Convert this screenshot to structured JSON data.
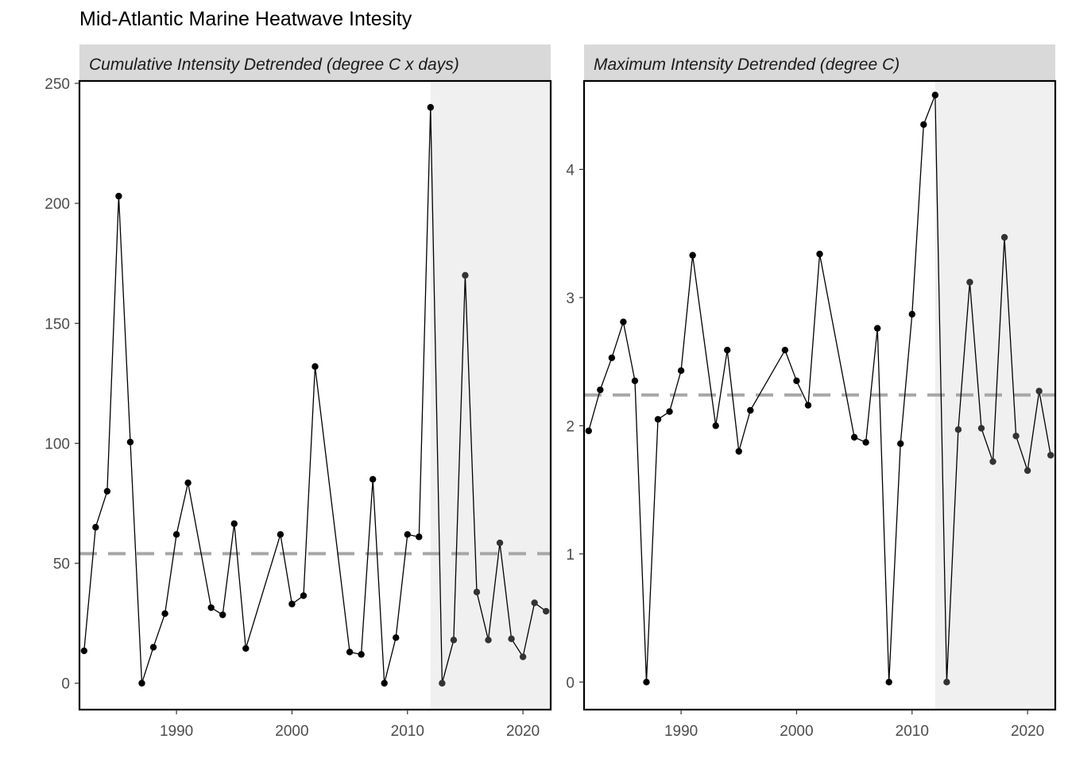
{
  "chart_data": {
    "type": "line",
    "title": "Mid-Atlantic Marine Heatwave Intesity",
    "shade_x_start": 2012,
    "x_ticks": [
      1990,
      2000,
      2010,
      2020
    ],
    "panels": [
      {
        "strip_label": "Cumulative Intensity Detrended (degree C x days)",
        "xlim": [
          1981.6,
          2022.4
        ],
        "ylim": [
          -11,
          251
        ],
        "y_ticks": [
          0,
          50,
          100,
          150,
          200,
          250
        ],
        "mean_line": 54,
        "series": [
          {
            "x": [
              1982,
              1983,
              1984,
              1985,
              1986,
              1987,
              1988,
              1989,
              1990,
              1991,
              1993,
              1994,
              1995,
              1996,
              1999,
              2000,
              2001,
              2002,
              2005,
              2006,
              2007,
              2008,
              2009,
              2010,
              2011,
              2012,
              2013,
              2014,
              2015,
              2016,
              2017,
              2018,
              2019,
              2020,
              2021,
              2022
            ],
            "values": [
              13.5,
              65,
              80,
              203,
              100.5,
              0,
              15,
              29,
              62,
              83.5,
              31.5,
              28.5,
              66.5,
              14.5,
              62,
              33,
              36.5,
              132,
              13,
              12,
              85,
              0,
              19,
              62,
              61,
              240,
              0,
              18,
              170,
              38,
              18,
              58.5,
              18.5,
              11,
              33.5,
              30
            ]
          }
        ]
      },
      {
        "strip_label": "Maximum Intensity Detrended (degree C)",
        "xlim": [
          1981.6,
          2022.4
        ],
        "ylim": [
          -0.215,
          4.69
        ],
        "y_ticks": [
          0,
          1,
          2,
          3,
          4
        ],
        "mean_line": 2.24,
        "series": [
          {
            "x": [
              1982,
              1983,
              1984,
              1985,
              1986,
              1987,
              1988,
              1989,
              1990,
              1991,
              1993,
              1994,
              1995,
              1996,
              1999,
              2000,
              2001,
              2002,
              2005,
              2006,
              2007,
              2008,
              2009,
              2010,
              2011,
              2012,
              2013,
              2014,
              2015,
              2016,
              2017,
              2018,
              2019,
              2020,
              2021,
              2022
            ],
            "values": [
              1.96,
              2.28,
              2.53,
              2.81,
              2.35,
              0,
              2.05,
              2.11,
              2.43,
              3.33,
              2.0,
              2.59,
              1.8,
              2.12,
              2.59,
              2.35,
              2.16,
              3.34,
              1.91,
              1.87,
              2.76,
              0,
              1.86,
              2.87,
              4.35,
              4.58,
              0,
              1.97,
              3.12,
              1.98,
              1.72,
              3.47,
              1.92,
              1.65,
              2.27,
              1.77
            ]
          }
        ]
      }
    ]
  }
}
